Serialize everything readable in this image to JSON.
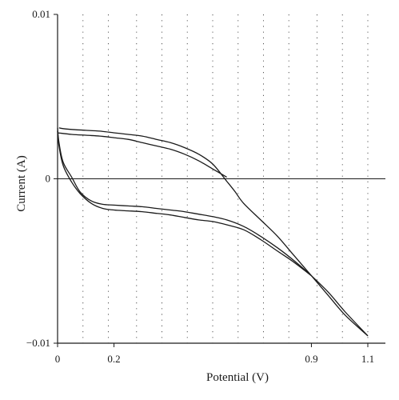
{
  "chart_data": {
    "type": "line",
    "title": "",
    "xlabel": "Potential (V)",
    "ylabel": "Current (A)",
    "xlim": [
      0,
      1.1
    ],
    "ylim": [
      -0.01,
      0.01
    ],
    "x_ticks": [
      {
        "value": 0,
        "label": "0"
      },
      {
        "value": 0.2,
        "label": "0.2"
      },
      {
        "value": 0.9,
        "label": "0.9"
      },
      {
        "value": 1.1,
        "label": "1.1"
      }
    ],
    "y_ticks": [
      {
        "value": 0.01,
        "label": "0.01"
      },
      {
        "value": 0,
        "label": "0"
      },
      {
        "value": -0.01,
        "label": "−0.01"
      }
    ],
    "x_gridlines": [
      0.09,
      0.18,
      0.28,
      0.37,
      0.46,
      0.55,
      0.64,
      0.73,
      0.82,
      0.92,
      1.01,
      1.1
    ],
    "grid": "vertical dotted",
    "zero_line": true,
    "legend": "none",
    "line_color": "#1a1a1a",
    "series": [
      {
        "x": [
          1.1,
          1.02,
          0.96,
          0.9,
          0.84,
          0.78,
          0.72,
          0.66,
          0.63,
          0.6,
          0.55,
          0.5,
          0.45,
          0.4,
          0.35,
          0.3,
          0.25,
          0.2,
          0.15,
          0.1,
          0.05,
          0.02,
          0.005
        ],
        "y": [
          -0.00955,
          -0.0083,
          -0.0071,
          -0.0059,
          -0.0047,
          -0.0035,
          -0.0025,
          -0.0015,
          -0.0008,
          -0.00015,
          0.0009,
          0.0015,
          0.0019,
          0.0022,
          0.0024,
          0.0026,
          0.0027,
          0.0028,
          0.0029,
          0.00295,
          0.003,
          0.00305,
          0.0031
        ]
      },
      {
        "x": [
          0.0,
          0.005,
          0.02,
          0.05,
          0.08,
          0.12,
          0.16,
          0.2,
          0.25,
          0.3,
          0.35,
          0.4,
          0.45,
          0.5,
          0.55,
          0.6,
          0.66,
          0.72,
          0.78,
          0.84,
          0.9,
          0.96,
          1.02,
          1.1
        ],
        "y": [
          0.0031,
          0.0022,
          0.001,
          0.0001,
          -0.0008,
          -0.00135,
          -0.00155,
          -0.0016,
          -0.00165,
          -0.0017,
          -0.0018,
          -0.0019,
          -0.002,
          -0.00215,
          -0.0023,
          -0.0025,
          -0.0029,
          -0.0035,
          -0.0042,
          -0.005,
          -0.0059,
          -0.0069,
          -0.0081,
          -0.00955
        ]
      },
      {
        "x": [
          0.0,
          0.005,
          0.02,
          0.05,
          0.08,
          0.12,
          0.16,
          0.2,
          0.25,
          0.3,
          0.35,
          0.4,
          0.45,
          0.5,
          0.55,
          0.6,
          0.66,
          0.72,
          0.78,
          0.84,
          0.9
        ],
        "y": [
          0.0029,
          0.002,
          0.0008,
          -0.0002,
          -0.0009,
          -0.0015,
          -0.0018,
          -0.0019,
          -0.00195,
          -0.002,
          -0.0021,
          -0.0022,
          -0.00235,
          -0.0025,
          -0.0026,
          -0.0028,
          -0.0031,
          -0.0037,
          -0.0044,
          -0.0051,
          -0.0059
        ]
      },
      {
        "x": [
          0.0,
          0.05,
          0.1,
          0.15,
          0.2,
          0.25,
          0.3,
          0.35,
          0.4,
          0.45,
          0.5,
          0.55,
          0.6
        ],
        "y": [
          0.0028,
          0.0027,
          0.00265,
          0.0026,
          0.0025,
          0.0024,
          0.0022,
          0.002,
          0.0018,
          0.0015,
          0.0011,
          0.0006,
          0.0001
        ]
      }
    ]
  }
}
